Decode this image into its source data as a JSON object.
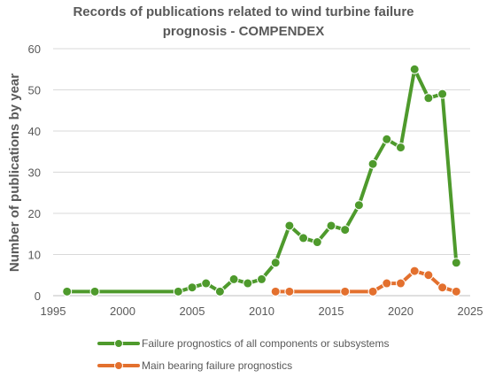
{
  "chart_data": {
    "type": "line",
    "title_lines": [
      "Records of publications related to wind turbine failure",
      "prognosis - COMPENDEX"
    ],
    "xlabel": "",
    "ylabel": "Number of publications by year",
    "xlim": [
      1995,
      2025
    ],
    "ylim": [
      0,
      60
    ],
    "x_ticks": [
      1995,
      2000,
      2005,
      2010,
      2015,
      2020,
      2025
    ],
    "y_ticks": [
      0,
      10,
      20,
      30,
      40,
      50,
      60
    ],
    "grid": "horizontal",
    "legend_placement": "bottom",
    "series": [
      {
        "name": "Failure prognostics of all components or subsystems",
        "color": "#4e9a2c",
        "x": [
          1996,
          1998,
          2004,
          2005,
          2006,
          2007,
          2008,
          2009,
          2010,
          2011,
          2012,
          2013,
          2014,
          2015,
          2016,
          2017,
          2018,
          2019,
          2020,
          2021,
          2022,
          2023,
          2024
        ],
        "y": [
          1,
          1,
          1,
          2,
          3,
          1,
          4,
          3,
          4,
          8,
          17,
          14,
          13,
          17,
          16,
          22,
          32,
          38,
          36,
          55,
          48,
          49,
          8
        ]
      },
      {
        "name": "Main bearing failure prognostics",
        "color": "#e3702e",
        "x": [
          2011,
          2012,
          2016,
          2018,
          2019,
          2020,
          2021,
          2022,
          2023,
          2024
        ],
        "y": [
          1,
          1,
          1,
          1,
          3,
          3,
          6,
          5,
          2,
          1
        ]
      }
    ]
  }
}
